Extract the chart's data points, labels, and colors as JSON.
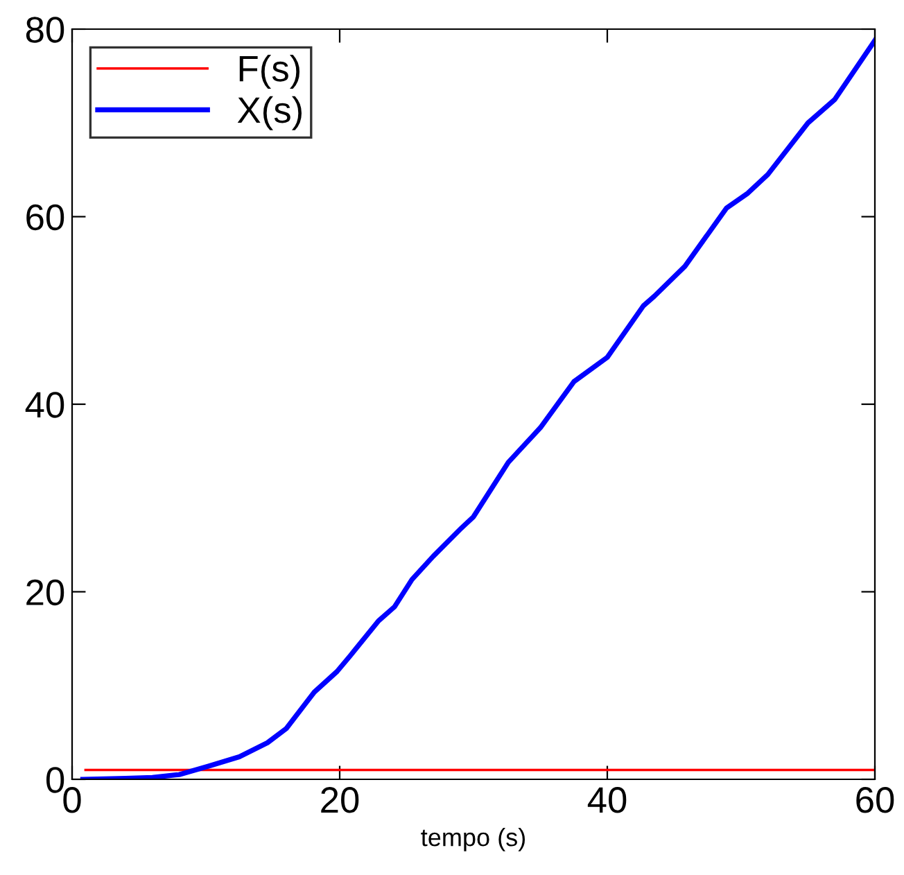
{
  "chart_data": {
    "type": "line",
    "xlabel": "tempo (s)",
    "xlim": [
      0,
      60
    ],
    "ylim": [
      0,
      80
    ],
    "xticks": [
      0,
      20,
      40,
      60
    ],
    "yticks": [
      0,
      20,
      40,
      60,
      80
    ],
    "grid": false,
    "legend": "top left",
    "marker": "none",
    "line_style": "solid",
    "series": [
      {
        "name": "F(s)",
        "color": "#ff0000",
        "x": [
          1,
          60
        ],
        "values": [
          1,
          1
        ]
      },
      {
        "name": "X(s)",
        "color": "#0000ff",
        "x": [
          0.8,
          4,
          6,
          8,
          10.2,
          12.5,
          14.6,
          16,
          18.1,
          19.8,
          20.8,
          22.9,
          24.1,
          25.4,
          27,
          29.1,
          30,
          32.6,
          35,
          37.5,
          40,
          42.7,
          43.5,
          45.8,
          48.9,
          50.5,
          52,
          55,
          57,
          60
        ],
        "values": [
          0,
          0.1,
          0.2,
          0.5,
          1.4,
          2.4,
          3.9,
          5.4,
          9.3,
          11.5,
          13.2,
          16.9,
          18.4,
          21.3,
          23.8,
          26.8,
          28,
          33.8,
          37.5,
          42.4,
          45,
          50.5,
          51.5,
          54.7,
          60.9,
          62.5,
          64.5,
          70,
          72.5,
          78.8
        ]
      }
    ]
  }
}
